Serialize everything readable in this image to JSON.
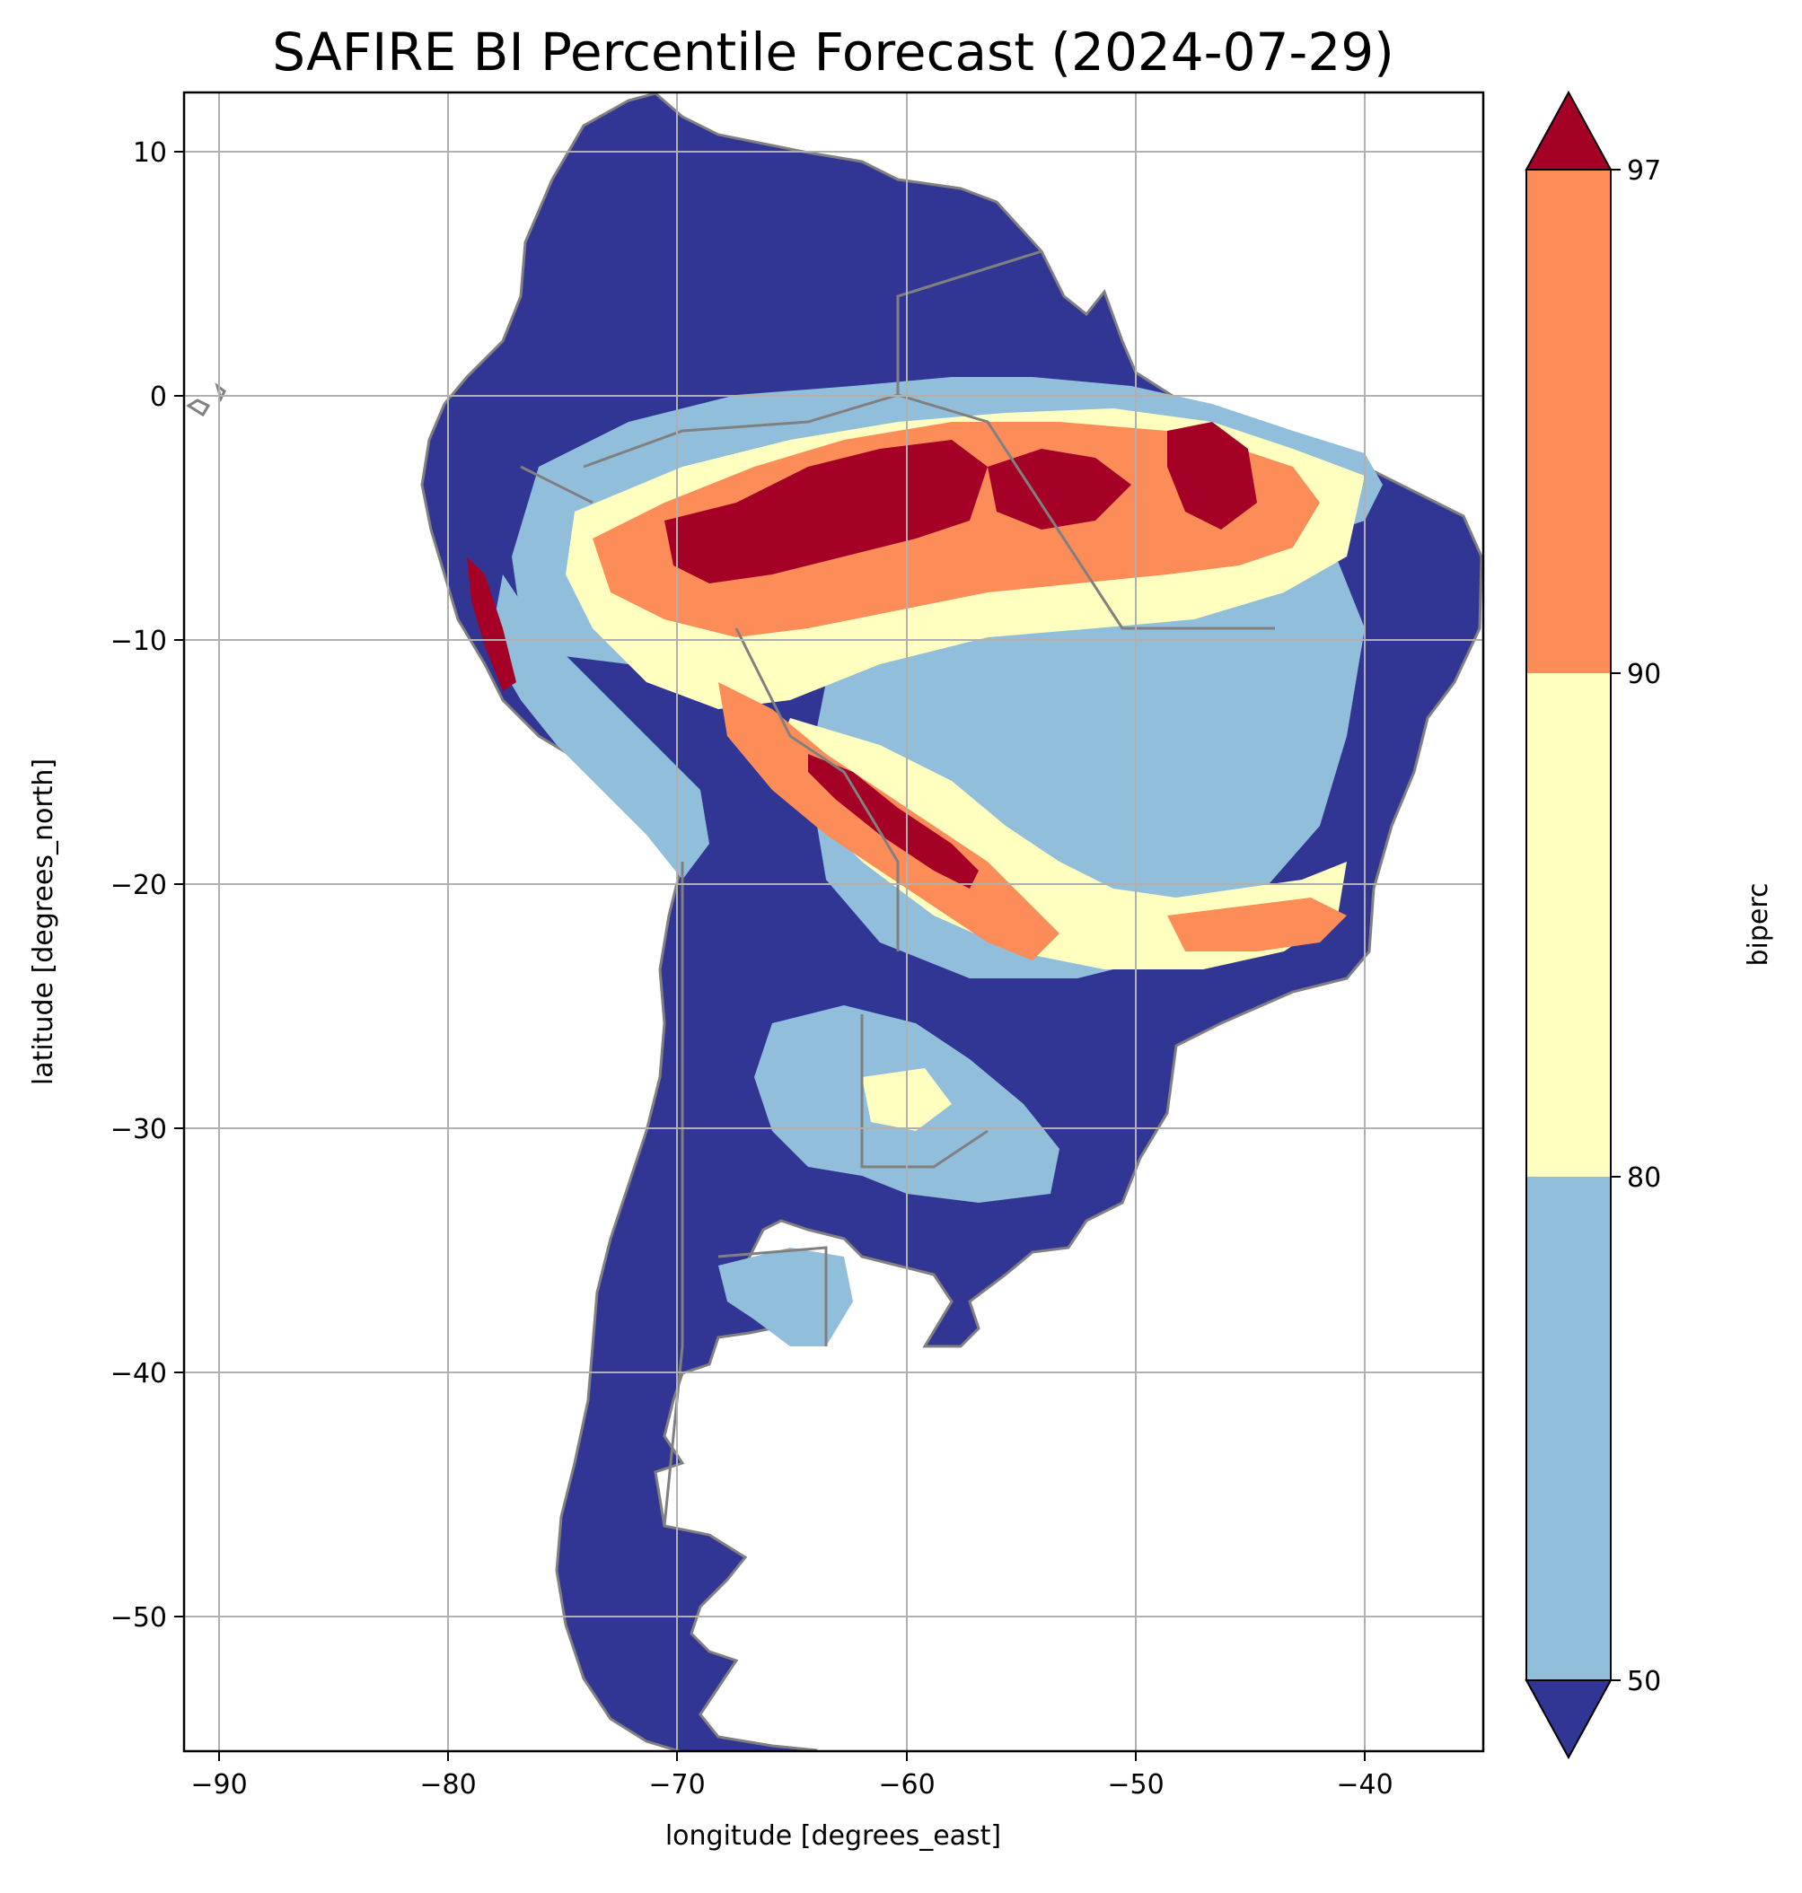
{
  "title": "SAFIRE BI Percentile Forecast (2024-07-29)",
  "x_axis": {
    "label": "longitude [degrees_east]",
    "range": [
      -92.3,
      -35.0
    ],
    "ticks": [
      -90,
      -80,
      -70,
      -60,
      -50,
      -40
    ]
  },
  "y_axis": {
    "label": "latitude [degrees_north]",
    "range": [
      -55.4,
      12.5
    ],
    "ticks": [
      10,
      0,
      -10,
      -20,
      -30,
      -40,
      -50
    ]
  },
  "grid": true,
  "colorbar": {
    "label": "biperc",
    "ticks": [
      50,
      80,
      90,
      97
    ],
    "extend": "both",
    "colors": {
      "below_50": "#313695",
      "50_80": "#91bfdb",
      "80_90": "#ffffbf",
      "90_97": "#fc8d59",
      "above_97": "#a50026"
    }
  },
  "border_color": "#808080"
}
